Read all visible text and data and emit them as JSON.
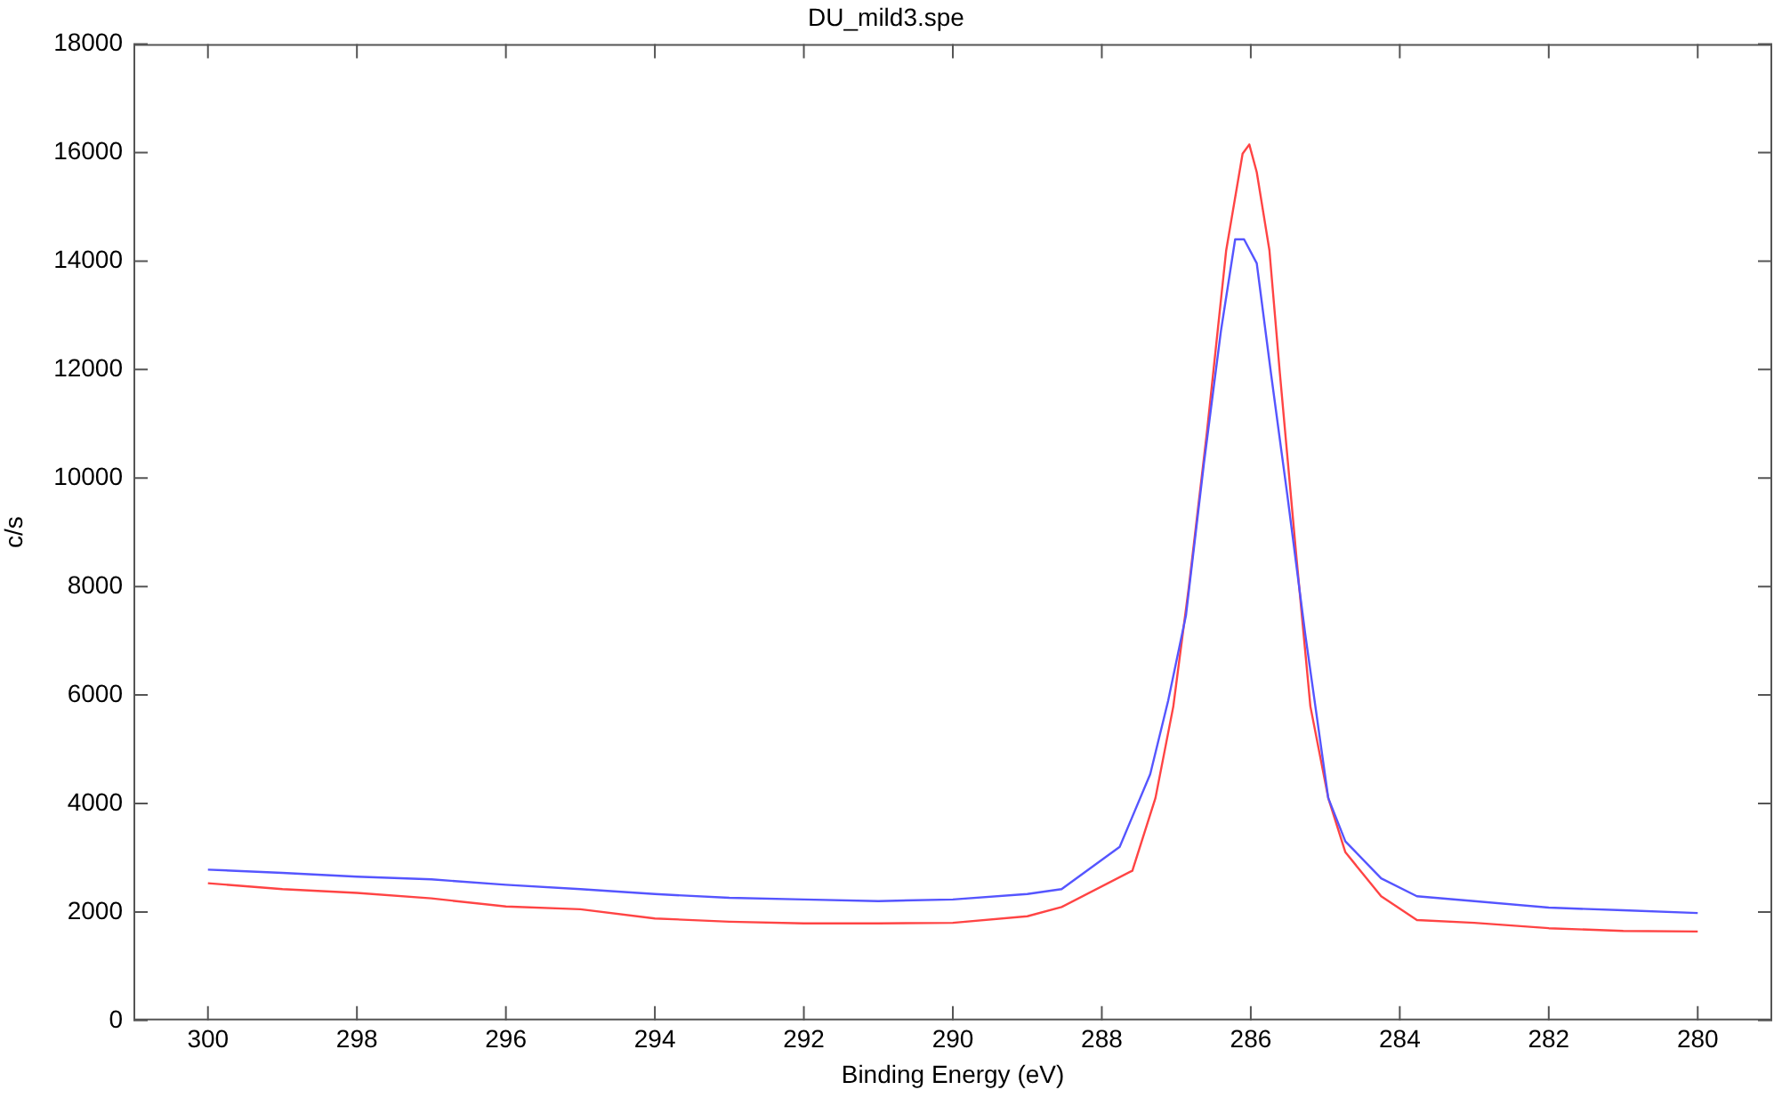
{
  "chart_data": {
    "type": "line",
    "title": "DU_mild3.spe",
    "xlabel": "Binding Energy (eV)",
    "ylabel": "c/s",
    "xlim": [
      301,
      279
    ],
    "xticks": [
      300,
      298,
      296,
      294,
      292,
      290,
      288,
      286,
      284,
      282,
      280
    ],
    "ylim": [
      0,
      18000
    ],
    "yticks": [
      0,
      2000,
      4000,
      6000,
      8000,
      10000,
      12000,
      14000,
      16000,
      18000
    ],
    "grid": false,
    "legend": false,
    "marker": "none",
    "line_style": "solid",
    "series": [
      {
        "color": "#5555ff",
        "x": [
          300,
          299,
          298,
          297,
          296,
          295,
          294,
          293,
          292,
          291,
          290,
          289,
          288.54,
          287.76,
          287.35,
          287.11,
          286.87,
          286.63,
          286.4,
          286.21,
          286.09,
          285.92,
          285.73,
          285.51,
          285.27,
          284.96,
          284.73,
          284.25,
          283.77,
          283,
          282,
          281,
          280
        ],
        "values": [
          2780,
          2720,
          2650,
          2600,
          2500,
          2420,
          2330,
          2260,
          2230,
          2200,
          2230,
          2330,
          2420,
          3200,
          4540,
          5890,
          7470,
          10260,
          12720,
          14400,
          14400,
          13960,
          11940,
          9690,
          7130,
          4100,
          3300,
          2620,
          2290,
          2200,
          2080,
          2030,
          1980
        ]
      },
      {
        "color": "#ff4444",
        "x": [
          300,
          299,
          298,
          297,
          296,
          295,
          294,
          293,
          292,
          291,
          290,
          289,
          288.54,
          287.59,
          287.28,
          287.04,
          286.83,
          286.59,
          286.33,
          286.11,
          286.02,
          285.92,
          285.75,
          285.61,
          285.39,
          285.2,
          284.96,
          284.73,
          284.25,
          283.77,
          283,
          282,
          281,
          280
        ],
        "values": [
          2530,
          2420,
          2350,
          2250,
          2100,
          2050,
          1880,
          1820,
          1790,
          1790,
          1800,
          1920,
          2090,
          2760,
          4100,
          5790,
          8010,
          10830,
          14200,
          15980,
          16150,
          15640,
          14200,
          11940,
          8580,
          5790,
          4100,
          3100,
          2290,
          1850,
          1800,
          1700,
          1650,
          1640
        ]
      }
    ]
  }
}
